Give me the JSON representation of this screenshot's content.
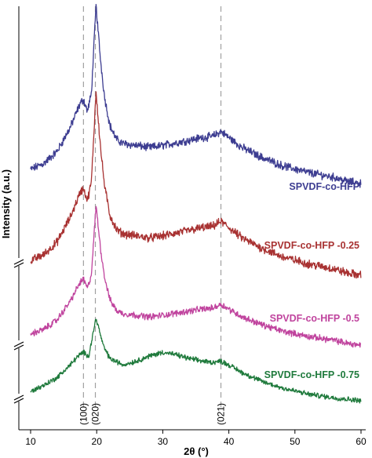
{
  "chart_data": {
    "type": "line",
    "xlabel": "2θ (°)",
    "ylabel": "Intensity (a.u.)",
    "xlim": [
      10,
      60
    ],
    "xticks": [
      10,
      20,
      30,
      40,
      50,
      60
    ],
    "tick_labels": [
      "10",
      "20",
      "30",
      "40",
      "50",
      "60"
    ],
    "y_axis_breaks": 3,
    "grid": false,
    "reference_lines": [
      {
        "x": 18.0,
        "label": "(100)"
      },
      {
        "x": 19.8,
        "label": "(020)"
      },
      {
        "x": 38.8,
        "label": "(021)"
      }
    ],
    "series": [
      {
        "name": "SPVDF-co-HFP",
        "color": "#3d3d91",
        "x": [
          10,
          12,
          14,
          16,
          17,
          17.5,
          18,
          18.6,
          19.2,
          19.9,
          20.6,
          21.2,
          22,
          23,
          24,
          26,
          28,
          30,
          33,
          36,
          37.5,
          38.8,
          40,
          42,
          45,
          48,
          52,
          56,
          58,
          60
        ],
        "y": [
          18,
          21,
          27,
          39,
          47,
          51,
          53,
          47,
          56,
          100,
          72,
          54,
          40,
          33,
          31,
          30,
          29,
          30,
          32,
          34,
          34.5,
          37,
          34,
          29,
          24,
          20,
          16.5,
          14,
          12,
          11
        ]
      },
      {
        "name": "SPVDF-co-HFP -0.25",
        "color": "#a83232",
        "x": [
          10,
          12,
          14,
          16,
          17,
          17.5,
          18,
          18.6,
          19.2,
          19.9,
          20.6,
          21.2,
          22,
          23,
          24,
          26,
          28,
          30,
          33,
          36,
          37.5,
          38.8,
          40,
          42,
          45,
          48,
          52,
          56,
          58,
          60
        ],
        "y": [
          18,
          21,
          27,
          39,
          47,
          51,
          53,
          47,
          56,
          100,
          72,
          54,
          40,
          33,
          31,
          30,
          29,
          30,
          32,
          34,
          34.5,
          37,
          34,
          29,
          24,
          20,
          16.5,
          14,
          12,
          11
        ]
      },
      {
        "name": "SPVDF-co-HFP -0.5",
        "color": "#c0449e",
        "x": [
          10,
          12,
          14,
          16,
          17,
          17.5,
          18,
          18.6,
          19.2,
          19.9,
          20.6,
          21.2,
          22,
          23,
          24,
          26,
          28,
          30,
          33,
          36,
          37.5,
          38.8,
          40,
          42,
          45,
          48,
          52,
          56,
          58,
          60
        ],
        "y": [
          18,
          21,
          27,
          39,
          47,
          51,
          53,
          47,
          56,
          100,
          72,
          54,
          40,
          33,
          31,
          30,
          29,
          30,
          32,
          34,
          34.5,
          37,
          34,
          29,
          24,
          20,
          16.5,
          14,
          12,
          11
        ]
      },
      {
        "name": "SPVDF-co-HFP -0.75",
        "color": "#1f7a3c",
        "x": [
          10,
          12,
          14,
          16,
          17,
          18,
          18.8,
          19.9,
          21,
          22,
          24,
          26,
          28,
          30,
          32,
          34,
          36,
          37.5,
          38.8,
          40,
          42,
          45,
          48,
          52,
          56,
          60
        ],
        "y": [
          14,
          19,
          25,
          35,
          41,
          45,
          42,
          72,
          50,
          40,
          35,
          38,
          42,
          45,
          43,
          40,
          38,
          37,
          38,
          35,
          29,
          22,
          17,
          12,
          9,
          7
        ]
      }
    ]
  }
}
